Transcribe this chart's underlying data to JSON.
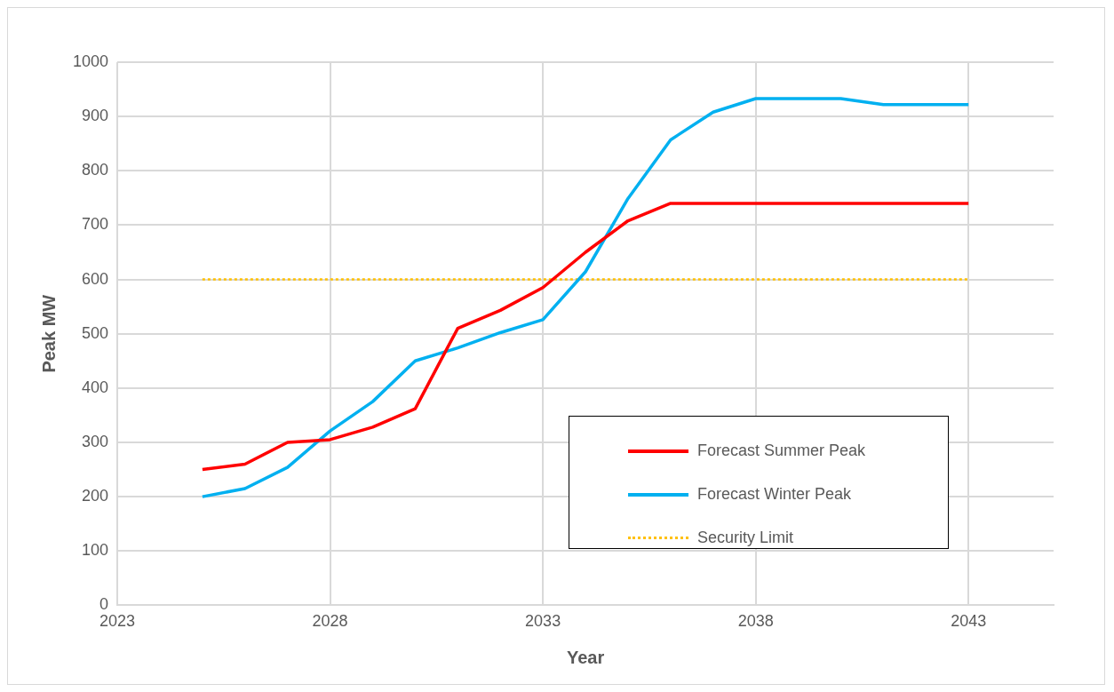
{
  "chart_data": {
    "type": "line",
    "xlabel": "Year",
    "ylabel": "Peak MW",
    "x": [
      2025,
      2026,
      2027,
      2028,
      2029,
      2030,
      2031,
      2032,
      2033,
      2034,
      2035,
      2036,
      2037,
      2038,
      2039,
      2040,
      2041,
      2042,
      2043
    ],
    "series": [
      {
        "name": "Forecast Summer Peak",
        "color": "#ff0000",
        "values": [
          250,
          260,
          300,
          305,
          328,
          362,
          510,
          543,
          585,
          650,
          708,
          740,
          740,
          740,
          740,
          740,
          740,
          740,
          740
        ]
      },
      {
        "name": "Forecast Winter Peak",
        "color": "#00b0f0",
        "values": [
          200,
          215,
          254,
          321,
          375,
          450,
          474,
          502,
          526,
          614,
          749,
          857,
          908,
          933,
          933,
          933,
          922,
          922,
          922
        ]
      },
      {
        "name": "Security Limit",
        "color": "#ffc000",
        "line_style": "dotted",
        "values": [
          600,
          600,
          600,
          600,
          600,
          600,
          600,
          600,
          600,
          600,
          600,
          600,
          600,
          600,
          600,
          600,
          600,
          600,
          600
        ]
      }
    ],
    "xlim": [
      2023,
      2045
    ],
    "xticks": [
      2023,
      2028,
      2033,
      2038,
      2043
    ],
    "ylim": [
      0,
      1000
    ],
    "yticks": [
      0,
      100,
      200,
      300,
      400,
      500,
      600,
      700,
      800,
      900,
      1000
    ],
    "grid": true,
    "legend": "bottom right",
    "marker": "none",
    "line_style": "solid"
  }
}
